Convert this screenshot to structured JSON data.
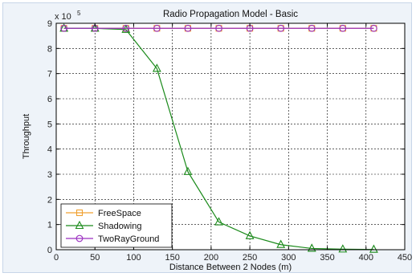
{
  "chart_data": {
    "type": "line",
    "title": "Radio Propagation Model - Basic",
    "xlabel": "Distance Between 2 Nodes (m)",
    "ylabel": "Throughput",
    "y_multiplier_base": "x 10",
    "y_multiplier_exp": "5",
    "xlim": [
      0,
      450
    ],
    "ylim": [
      0,
      9
    ],
    "x_ticks": [
      0,
      50,
      100,
      150,
      200,
      250,
      300,
      350,
      400,
      450
    ],
    "y_ticks": [
      0,
      1,
      2,
      3,
      4,
      5,
      6,
      7,
      8,
      9
    ],
    "grid": true,
    "legend_position": "bottom-left",
    "series": [
      {
        "name": "FreeSpace",
        "color": "#f0a030",
        "marker": "square",
        "x": [
          10,
          50,
          90,
          130,
          170,
          210,
          250,
          290,
          330,
          370,
          410
        ],
        "y": [
          8.8,
          8.8,
          8.8,
          8.8,
          8.8,
          8.8,
          8.8,
          8.8,
          8.8,
          8.8,
          8.8
        ]
      },
      {
        "name": "Shadowing",
        "color": "#1a8a1a",
        "marker": "triangle",
        "x": [
          10,
          50,
          90,
          130,
          170,
          210,
          250,
          290,
          330,
          370,
          410
        ],
        "y": [
          8.8,
          8.8,
          8.75,
          7.2,
          3.1,
          1.1,
          0.55,
          0.2,
          0.05,
          0.02,
          0.01
        ]
      },
      {
        "name": "TwoRayGround",
        "color": "#9a2fc0",
        "marker": "circle",
        "x": [
          10,
          50,
          90,
          130,
          170,
          210,
          250,
          290,
          330,
          370,
          410
        ],
        "y": [
          8.8,
          8.8,
          8.8,
          8.8,
          8.8,
          8.8,
          8.8,
          8.8,
          8.8,
          8.8,
          8.8
        ]
      }
    ]
  }
}
